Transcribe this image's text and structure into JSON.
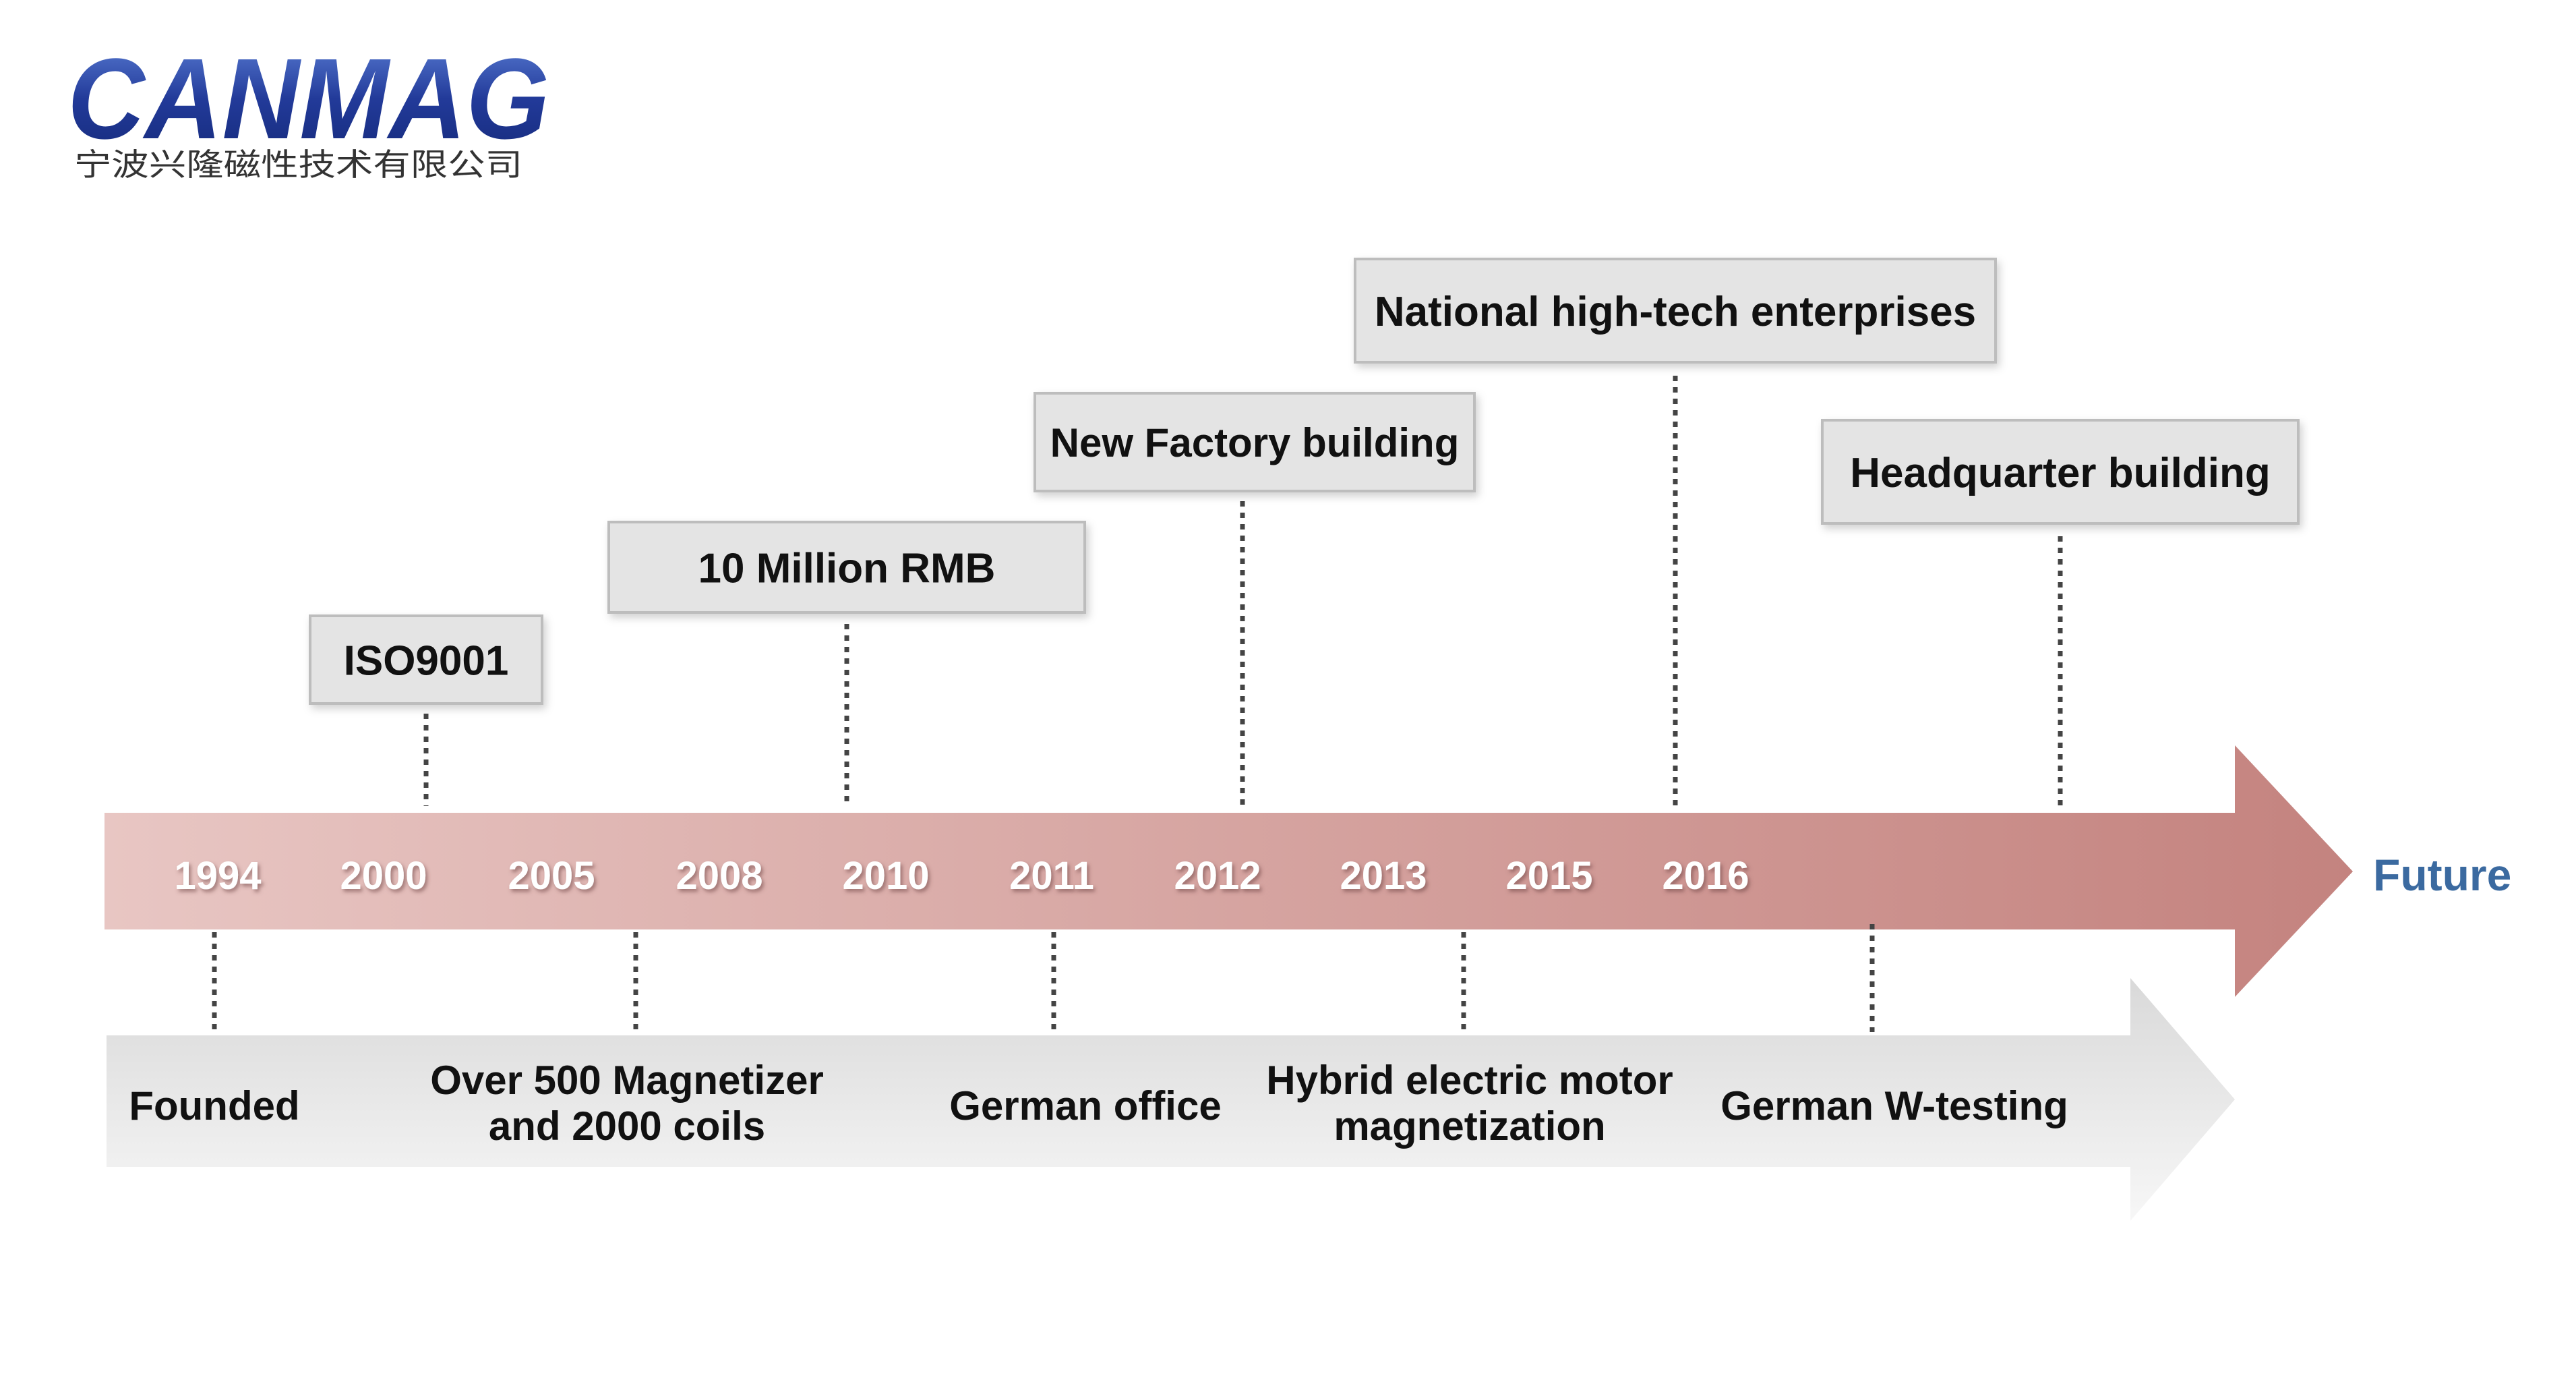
{
  "brand": {
    "name": "CANMAG",
    "subtitle": "宁波兴隆磁性技术有限公司",
    "color": "#2a3f9a"
  },
  "timeline": {
    "end_label": "Future",
    "end_label_color": "#3b6aa0",
    "arrow_color": "#c98b87",
    "years": [
      "1994",
      "2000",
      "2005",
      "2008",
      "2010",
      "2011",
      "2012",
      "2013",
      "2015",
      "2016"
    ],
    "top_milestones": [
      {
        "text": "ISO9001"
      },
      {
        "text": "10 Million RMB"
      },
      {
        "text": "New Factory building"
      },
      {
        "text": "National high-tech enterprises"
      },
      {
        "text": "Headquarter building"
      }
    ],
    "bottom_milestones": [
      {
        "lines": [
          "Founded"
        ]
      },
      {
        "lines": [
          "Over 500 Magnetizer",
          "and 2000 coils"
        ]
      },
      {
        "lines": [
          "German office"
        ]
      },
      {
        "lines": [
          "Hybrid electric motor",
          "magnetization"
        ]
      },
      {
        "lines": [
          "German W-testing"
        ]
      }
    ]
  }
}
